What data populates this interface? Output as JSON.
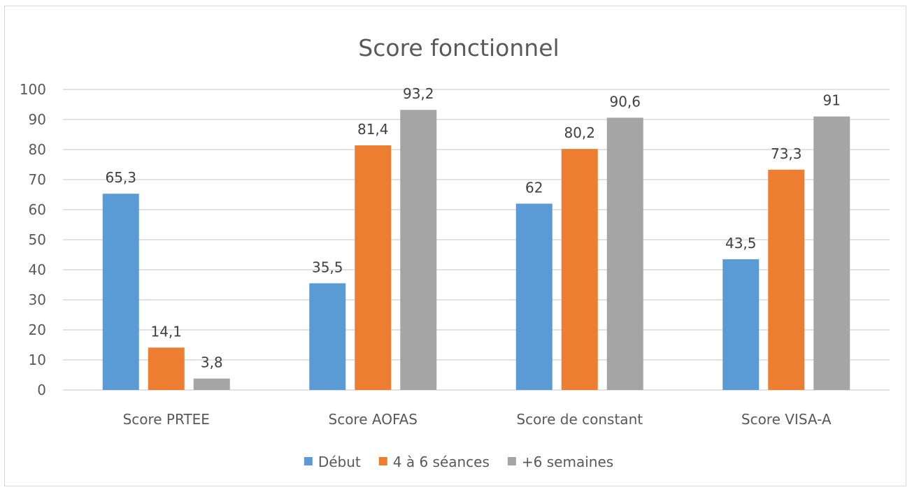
{
  "chart_data": {
    "type": "bar",
    "title": "Score fonctionnel",
    "xlabel": "",
    "ylabel": "",
    "ylim": [
      0,
      100
    ],
    "ytick_step": 10,
    "grid": true,
    "legend_position": "bottom",
    "categories": [
      "Score PRTEE",
      "Score AOFAS",
      "Score de constant",
      "Score VISA-A"
    ],
    "series": [
      {
        "name": "Début",
        "color": "#5b9bd5",
        "values": [
          65.3,
          35.5,
          62,
          43.5
        ],
        "labels": [
          "65,3",
          "35,5",
          "62",
          "43,5"
        ]
      },
      {
        "name": "4 à 6 séances",
        "color": "#ed7d31",
        "values": [
          14.1,
          81.4,
          80.2,
          73.3
        ],
        "labels": [
          "14,1",
          "81,4",
          "80,2",
          "73,3"
        ]
      },
      {
        "name": "+6 semaines",
        "color": "#a5a5a5",
        "values": [
          3.8,
          93.2,
          90.6,
          91
        ],
        "labels": [
          "3,8",
          "93,2",
          "90,6",
          "91"
        ]
      }
    ]
  }
}
